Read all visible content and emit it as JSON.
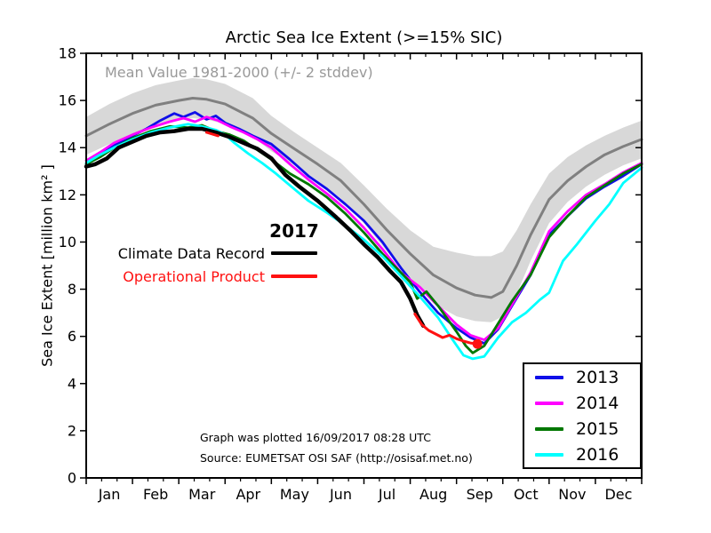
{
  "title": "Arctic Sea Ice Extent (>=15% SIC)",
  "annotation": "Mean Value 1981-2000 (+/- 2 stddev)",
  "legend_2017": {
    "year_label": "2017",
    "cdr_label": "Climate Data Record",
    "op_label": "Operational Product",
    "cdr_color": "#000000",
    "op_color": "#ff1111"
  },
  "legend_years": {
    "items": [
      {
        "label": "2013",
        "color": "#0f0fe8"
      },
      {
        "label": "2014",
        "color": "#ff00ff"
      },
      {
        "label": "2015",
        "color": "#007700"
      },
      {
        "label": "2016",
        "color": "#00ffff"
      }
    ]
  },
  "footer": {
    "line1": "Graph was plotted 16/09/2017 08:28 UTC",
    "line2": "Source: EUMETSAT OSI SAF (http://osisaf.met.no)"
  },
  "chart_data": {
    "type": "line",
    "title": "Arctic Sea Ice Extent (>=15% SIC)",
    "xlabel": "",
    "ylabel": "Sea Ice Extent [million km² ]",
    "x_unit": "months, 0 = Jan 1 to 12 = Dec 31",
    "y_unit": "million km^2",
    "xlim": [
      0,
      12
    ],
    "ylim": [
      0,
      18
    ],
    "x_tick_labels": [
      "Jan",
      "Feb",
      "Mar",
      "Apr",
      "May",
      "Jun",
      "Jul",
      "Aug",
      "Sep",
      "Oct",
      "Nov",
      "Dec"
    ],
    "y_ticks": [
      0,
      2,
      4,
      6,
      8,
      10,
      12,
      14,
      16,
      18
    ],
    "grid": false,
    "band": {
      "name": "Mean Value 1981-2000 (+/- 2 stddev)",
      "color": "#d8d8d8",
      "upper": [
        [
          0,
          15.3
        ],
        [
          0.5,
          15.85
        ],
        [
          1,
          16.3
        ],
        [
          1.5,
          16.65
        ],
        [
          2,
          16.85
        ],
        [
          2.3,
          16.95
        ],
        [
          2.6,
          16.9
        ],
        [
          3,
          16.7
        ],
        [
          3.3,
          16.4
        ],
        [
          3.6,
          16.1
        ],
        [
          4,
          15.35
        ],
        [
          4.5,
          14.65
        ],
        [
          5,
          14.0
        ],
        [
          5.5,
          13.35
        ],
        [
          6,
          12.4
        ],
        [
          6.5,
          11.4
        ],
        [
          7,
          10.5
        ],
        [
          7.5,
          9.8
        ],
        [
          8,
          9.55
        ],
        [
          8.4,
          9.4
        ],
        [
          8.75,
          9.4
        ],
        [
          9,
          9.6
        ],
        [
          9.3,
          10.5
        ],
        [
          9.6,
          11.6
        ],
        [
          10,
          12.9
        ],
        [
          10.4,
          13.6
        ],
        [
          10.8,
          14.1
        ],
        [
          11.2,
          14.5
        ],
        [
          11.6,
          14.85
        ],
        [
          12,
          15.15
        ]
      ],
      "lower": [
        [
          0,
          13.7
        ],
        [
          0.5,
          14.15
        ],
        [
          1,
          14.6
        ],
        [
          1.5,
          14.95
        ],
        [
          2,
          15.15
        ],
        [
          2.3,
          15.25
        ],
        [
          2.6,
          15.2
        ],
        [
          3,
          15.0
        ],
        [
          3.3,
          14.75
        ],
        [
          3.6,
          14.45
        ],
        [
          4,
          13.85
        ],
        [
          4.5,
          13.25
        ],
        [
          5,
          12.6
        ],
        [
          5.5,
          11.85
        ],
        [
          6,
          10.8
        ],
        [
          6.5,
          9.6
        ],
        [
          7,
          8.5
        ],
        [
          7.5,
          7.4
        ],
        [
          8,
          6.85
        ],
        [
          8.4,
          6.65
        ],
        [
          8.75,
          6.6
        ],
        [
          9,
          6.85
        ],
        [
          9.3,
          7.8
        ],
        [
          9.6,
          9.2
        ],
        [
          10,
          10.8
        ],
        [
          10.4,
          11.7
        ],
        [
          10.8,
          12.35
        ],
        [
          11.2,
          12.85
        ],
        [
          11.6,
          13.25
        ],
        [
          12,
          13.55
        ]
      ]
    },
    "mean": {
      "name": "Mean 1981-2000",
      "color": "#808080",
      "points": [
        [
          0,
          14.5
        ],
        [
          0.5,
          15.0
        ],
        [
          1,
          15.45
        ],
        [
          1.5,
          15.8
        ],
        [
          2,
          16.0
        ],
        [
          2.3,
          16.1
        ],
        [
          2.6,
          16.05
        ],
        [
          3,
          15.85
        ],
        [
          3.3,
          15.55
        ],
        [
          3.6,
          15.25
        ],
        [
          4,
          14.6
        ],
        [
          4.5,
          13.95
        ],
        [
          5,
          13.3
        ],
        [
          5.5,
          12.6
        ],
        [
          6,
          11.6
        ],
        [
          6.5,
          10.5
        ],
        [
          7,
          9.5
        ],
        [
          7.5,
          8.6
        ],
        [
          8,
          8.05
        ],
        [
          8.4,
          7.75
        ],
        [
          8.75,
          7.65
        ],
        [
          9,
          7.9
        ],
        [
          9.3,
          9.0
        ],
        [
          9.6,
          10.3
        ],
        [
          10,
          11.8
        ],
        [
          10.4,
          12.6
        ],
        [
          10.8,
          13.2
        ],
        [
          11.2,
          13.7
        ],
        [
          11.6,
          14.05
        ],
        [
          12,
          14.35
        ]
      ]
    },
    "series": [
      {
        "name": "2013",
        "color": "#0f0fe8",
        "width": 2.8,
        "points": [
          [
            0,
            13.3
          ],
          [
            0.3,
            13.75
          ],
          [
            0.6,
            14.1
          ],
          [
            1,
            14.5
          ],
          [
            1.3,
            14.8
          ],
          [
            1.6,
            15.15
          ],
          [
            1.9,
            15.45
          ],
          [
            2.1,
            15.3
          ],
          [
            2.35,
            15.5
          ],
          [
            2.6,
            15.2
          ],
          [
            2.8,
            15.35
          ],
          [
            3,
            15.05
          ],
          [
            3.3,
            14.8
          ],
          [
            3.6,
            14.5
          ],
          [
            4,
            14.15
          ],
          [
            4.4,
            13.5
          ],
          [
            4.8,
            12.8
          ],
          [
            5.2,
            12.25
          ],
          [
            5.6,
            11.6
          ],
          [
            6,
            10.9
          ],
          [
            6.4,
            10.0
          ],
          [
            6.8,
            8.9
          ],
          [
            7.2,
            7.9
          ],
          [
            7.6,
            7.0
          ],
          [
            8,
            6.35
          ],
          [
            8.3,
            5.95
          ],
          [
            8.6,
            5.7
          ],
          [
            8.9,
            6.3
          ],
          [
            9.2,
            7.3
          ],
          [
            9.6,
            8.6
          ],
          [
            10,
            10.3
          ],
          [
            10.4,
            11.1
          ],
          [
            10.8,
            11.85
          ],
          [
            11.2,
            12.35
          ],
          [
            11.6,
            12.8
          ],
          [
            12,
            13.3
          ]
        ]
      },
      {
        "name": "2014",
        "color": "#ff00ff",
        "width": 2.8,
        "points": [
          [
            0,
            13.45
          ],
          [
            0.3,
            13.8
          ],
          [
            0.6,
            14.2
          ],
          [
            1,
            14.55
          ],
          [
            1.4,
            14.85
          ],
          [
            1.8,
            15.1
          ],
          [
            2.1,
            15.25
          ],
          [
            2.35,
            15.1
          ],
          [
            2.6,
            15.3
          ],
          [
            2.85,
            15.15
          ],
          [
            3.1,
            14.9
          ],
          [
            3.4,
            14.65
          ],
          [
            3.7,
            14.35
          ],
          [
            4,
            14.0
          ],
          [
            4.4,
            13.3
          ],
          [
            4.8,
            12.65
          ],
          [
            5.2,
            12.05
          ],
          [
            5.6,
            11.4
          ],
          [
            6,
            10.6
          ],
          [
            6.4,
            9.7
          ],
          [
            6.8,
            8.7
          ],
          [
            7.2,
            8.1
          ],
          [
            7.6,
            7.3
          ],
          [
            8,
            6.5
          ],
          [
            8.3,
            6.05
          ],
          [
            8.6,
            5.85
          ],
          [
            8.9,
            6.35
          ],
          [
            9.2,
            7.35
          ],
          [
            9.6,
            8.7
          ],
          [
            10,
            10.45
          ],
          [
            10.4,
            11.3
          ],
          [
            10.8,
            12.0
          ],
          [
            11.2,
            12.45
          ],
          [
            11.6,
            12.95
          ],
          [
            12,
            13.35
          ]
        ]
      },
      {
        "name": "2015",
        "color": "#007700",
        "width": 2.8,
        "points": [
          [
            0,
            13.3
          ],
          [
            0.3,
            13.6
          ],
          [
            0.6,
            14.0
          ],
          [
            1,
            14.4
          ],
          [
            1.4,
            14.7
          ],
          [
            1.8,
            14.9
          ],
          [
            2.2,
            14.85
          ],
          [
            2.5,
            14.95
          ],
          [
            2.8,
            14.7
          ],
          [
            3.1,
            14.55
          ],
          [
            3.4,
            14.3
          ],
          [
            3.7,
            13.9
          ],
          [
            4,
            13.5
          ],
          [
            4.4,
            12.9
          ],
          [
            4.8,
            12.45
          ],
          [
            5.2,
            11.9
          ],
          [
            5.6,
            11.2
          ],
          [
            6,
            10.4
          ],
          [
            6.4,
            9.5
          ],
          [
            6.7,
            8.9
          ],
          [
            7,
            8.3
          ],
          [
            7.15,
            7.6
          ],
          [
            7.35,
            7.9
          ],
          [
            7.6,
            7.3
          ],
          [
            8,
            6.2
          ],
          [
            8.2,
            5.6
          ],
          [
            8.35,
            5.3
          ],
          [
            8.6,
            5.6
          ],
          [
            8.9,
            6.55
          ],
          [
            9.2,
            7.5
          ],
          [
            9.6,
            8.6
          ],
          [
            10,
            10.2
          ],
          [
            10.4,
            11.1
          ],
          [
            10.8,
            11.9
          ],
          [
            11.2,
            12.4
          ],
          [
            11.6,
            12.9
          ],
          [
            12,
            13.3
          ]
        ]
      },
      {
        "name": "2016",
        "color": "#00ffff",
        "width": 2.8,
        "points": [
          [
            0,
            13.35
          ],
          [
            0.3,
            13.7
          ],
          [
            0.6,
            14.0
          ],
          [
            1,
            14.35
          ],
          [
            1.4,
            14.65
          ],
          [
            1.8,
            14.85
          ],
          [
            2.2,
            15.0
          ],
          [
            2.5,
            14.9
          ],
          [
            2.8,
            14.75
          ],
          [
            3,
            14.55
          ],
          [
            3.2,
            14.2
          ],
          [
            3.5,
            13.75
          ],
          [
            3.8,
            13.35
          ],
          [
            4.1,
            12.9
          ],
          [
            4.4,
            12.4
          ],
          [
            4.8,
            11.75
          ],
          [
            5.2,
            11.25
          ],
          [
            5.6,
            10.7
          ],
          [
            6,
            10.1
          ],
          [
            6.4,
            9.4
          ],
          [
            6.8,
            8.55
          ],
          [
            7.2,
            7.7
          ],
          [
            7.6,
            6.8
          ],
          [
            7.9,
            5.9
          ],
          [
            8.15,
            5.2
          ],
          [
            8.35,
            5.05
          ],
          [
            8.6,
            5.15
          ],
          [
            8.9,
            5.95
          ],
          [
            9.2,
            6.6
          ],
          [
            9.5,
            7.0
          ],
          [
            9.8,
            7.55
          ],
          [
            10,
            7.85
          ],
          [
            10.3,
            9.2
          ],
          [
            10.6,
            9.9
          ],
          [
            11,
            10.9
          ],
          [
            11.3,
            11.6
          ],
          [
            11.6,
            12.5
          ],
          [
            12,
            13.15
          ]
        ]
      },
      {
        "name": "2017 Climate Data Record",
        "color": "#000000",
        "width": 4.5,
        "points": [
          [
            0,
            13.2
          ],
          [
            0.2,
            13.3
          ],
          [
            0.45,
            13.55
          ],
          [
            0.7,
            14.0
          ],
          [
            1,
            14.25
          ],
          [
            1.3,
            14.5
          ],
          [
            1.6,
            14.65
          ],
          [
            1.9,
            14.7
          ],
          [
            2.2,
            14.8
          ],
          [
            2.5,
            14.8
          ],
          [
            2.8,
            14.65
          ],
          [
            3.1,
            14.45
          ],
          [
            3.4,
            14.2
          ],
          [
            3.7,
            13.95
          ],
          [
            4,
            13.55
          ],
          [
            4.3,
            12.85
          ],
          [
            4.6,
            12.35
          ],
          [
            5,
            11.75
          ],
          [
            5.4,
            11.05
          ],
          [
            5.7,
            10.5
          ],
          [
            6,
            9.9
          ],
          [
            6.3,
            9.35
          ],
          [
            6.55,
            8.8
          ],
          [
            6.8,
            8.3
          ],
          [
            7,
            7.6
          ],
          [
            7.15,
            6.9
          ],
          [
            7.28,
            6.45
          ]
        ]
      },
      {
        "name": "2017 Operational Product",
        "color": "#ff1111",
        "width": 3,
        "segments": [
          [
            [
              2.6,
              14.65
            ],
            [
              2.85,
              14.5
            ]
          ],
          [
            [
              7.1,
              6.95
            ],
            [
              7.25,
              6.5
            ],
            [
              7.4,
              6.25
            ],
            [
              7.55,
              6.1
            ],
            [
              7.7,
              5.95
            ],
            [
              7.85,
              6.05
            ],
            [
              8.0,
              5.9
            ],
            [
              8.15,
              5.8
            ],
            [
              8.3,
              5.72
            ],
            [
              8.45,
              5.68
            ]
          ]
        ],
        "end_marker": [
          8.45,
          5.68
        ]
      }
    ],
    "legend_position": "lower right",
    "last_value_marker": {
      "value": 5.68,
      "date_label": "16/09/2017"
    }
  }
}
